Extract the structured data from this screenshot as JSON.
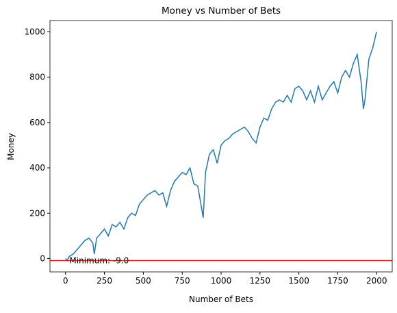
{
  "chart_data": {
    "type": "line",
    "title": "Money vs Number of Bets",
    "xlabel": "Number of Bets",
    "ylabel": "Money",
    "x": [
      0,
      10,
      25,
      50,
      75,
      100,
      125,
      150,
      175,
      185,
      200,
      225,
      250,
      275,
      300,
      325,
      350,
      375,
      400,
      425,
      450,
      475,
      500,
      525,
      550,
      575,
      600,
      625,
      650,
      675,
      700,
      725,
      750,
      775,
      800,
      825,
      850,
      875,
      885,
      900,
      925,
      950,
      975,
      1000,
      1025,
      1050,
      1075,
      1100,
      1125,
      1150,
      1175,
      1200,
      1225,
      1250,
      1275,
      1300,
      1325,
      1350,
      1375,
      1400,
      1425,
      1450,
      1475,
      1500,
      1525,
      1550,
      1575,
      1600,
      1625,
      1650,
      1675,
      1700,
      1725,
      1750,
      1775,
      1800,
      1825,
      1850,
      1875,
      1900,
      1915,
      1925,
      1950,
      1975,
      1999
    ],
    "series": [
      {
        "name": "Money",
        "color": "#1f77b4",
        "values": [
          0,
          -9,
          10,
          20,
          40,
          60,
          80,
          90,
          70,
          20,
          90,
          110,
          130,
          100,
          150,
          140,
          160,
          130,
          180,
          200,
          190,
          240,
          260,
          280,
          290,
          300,
          280,
          290,
          230,
          300,
          340,
          360,
          380,
          370,
          400,
          330,
          320,
          220,
          180,
          380,
          460,
          480,
          420,
          500,
          520,
          530,
          550,
          560,
          570,
          580,
          560,
          530,
          510,
          580,
          620,
          610,
          660,
          690,
          700,
          690,
          720,
          690,
          750,
          760,
          740,
          700,
          740,
          690,
          760,
          700,
          730,
          760,
          780,
          730,
          800,
          830,
          800,
          860,
          900,
          780,
          660,
          700,
          880,
          930,
          1000
        ]
      }
    ],
    "hline": {
      "value": -9,
      "color": "red"
    },
    "annotation": {
      "text": "Minimum: -9.0",
      "x": 25,
      "y": -9
    },
    "xlim": [
      -100,
      2100
    ],
    "xticks": [
      0,
      250,
      500,
      750,
      1000,
      1250,
      1500,
      1750,
      2000
    ],
    "ylim": [
      -59,
      1050
    ],
    "yticks": [
      0,
      200,
      400,
      600,
      800,
      1000
    ]
  }
}
